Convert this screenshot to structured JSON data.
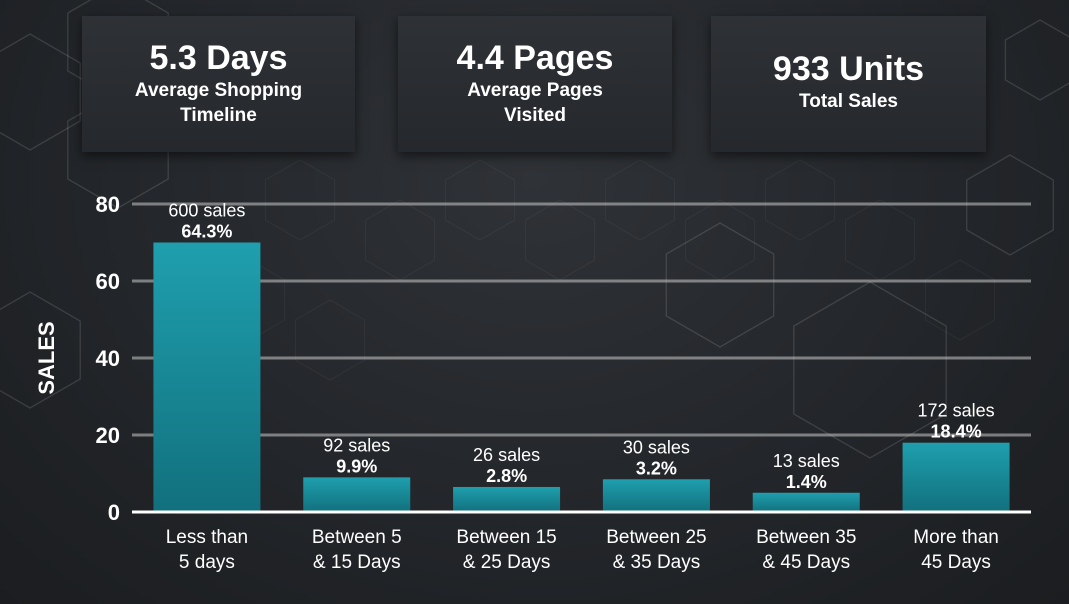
{
  "kpis": [
    {
      "value": "5.3 Days",
      "label": "Average Shopping Timeline"
    },
    {
      "value": "4.4 Pages",
      "label": "Average Pages Visited"
    },
    {
      "value": "933 Units",
      "label": "Total Sales"
    }
  ],
  "chart_data": {
    "type": "bar",
    "title": "",
    "xlabel": "",
    "ylabel": "SALES",
    "ylim": [
      0,
      80
    ],
    "yticks": [
      0,
      20,
      40,
      60,
      80
    ],
    "grid": true,
    "categories": [
      [
        "Less than",
        "5 days"
      ],
      [
        "Between 5",
        "& 15 Days"
      ],
      [
        "Between 15",
        "& 25 Days"
      ],
      [
        "Between 25",
        "& 35 Days"
      ],
      [
        "Between 35",
        "& 45 Days"
      ],
      [
        "More than",
        "45 Days"
      ]
    ],
    "values": [
      70,
      9,
      6.5,
      8.5,
      5,
      18
    ],
    "sales_labels": [
      "600 sales",
      "92 sales",
      "26 sales",
      "30 sales",
      "13 sales",
      "172 sales"
    ],
    "percent_labels": [
      "64.3%",
      "9.9%",
      "2.8%",
      "3.2%",
      "1.4%",
      "18.4%"
    ],
    "bar_color_top": "#1f9fae",
    "bar_color_bottom": "#12707d"
  }
}
